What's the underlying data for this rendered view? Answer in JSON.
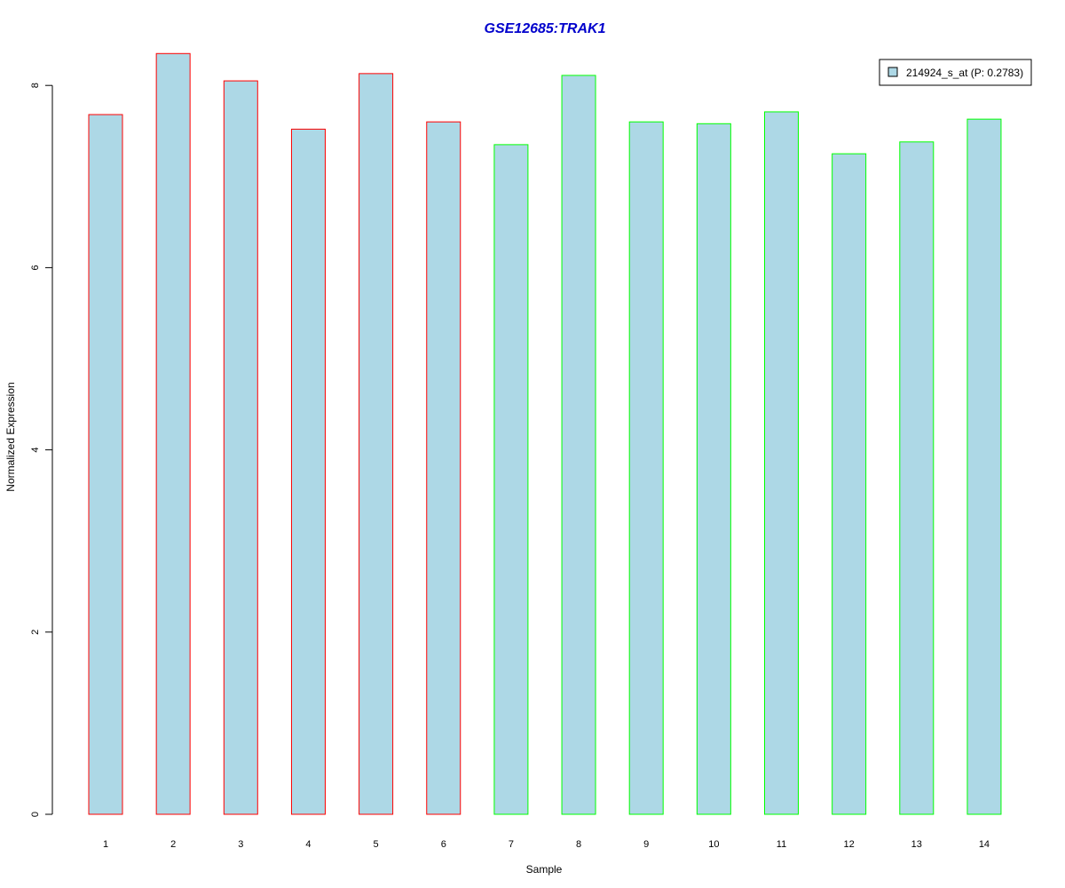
{
  "chart_data": {
    "type": "bar",
    "title": "GSE12685:TRAK1",
    "xlabel": "Sample",
    "ylabel": "Normalized Expression",
    "categories": [
      "1",
      "2",
      "3",
      "4",
      "5",
      "6",
      "7",
      "8",
      "9",
      "10",
      "11",
      "12",
      "13",
      "14"
    ],
    "series": [
      {
        "name": "214924_s_at (P: 0.2783)",
        "values": [
          7.68,
          8.35,
          8.05,
          7.52,
          8.13,
          7.6,
          7.35,
          8.11,
          7.6,
          7.58,
          7.71,
          7.25,
          7.38,
          7.63
        ]
      }
    ],
    "ylim": [
      0,
      8.4
    ],
    "yticks": [
      "0",
      "2",
      "4",
      "6",
      "8"
    ],
    "grid": false,
    "legend_position": "top-right",
    "colors": {
      "title": "#0000cc",
      "bar_fill": "#add8e6",
      "outline_group1": "#ff0000",
      "outline_group2": "#00ff00",
      "outline_group_index": [
        0,
        0,
        0,
        0,
        0,
        0,
        1,
        1,
        1,
        1,
        1,
        1,
        1,
        1
      ]
    }
  }
}
